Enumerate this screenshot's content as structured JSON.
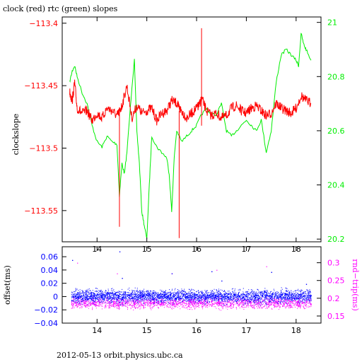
{
  "title": "clock (red) rtc (green) slopes",
  "footer": "2012-05-13  orbit.physics.ubc.ca",
  "colors": {
    "red": "#ff0000",
    "green": "#00ee00",
    "blue": "#0000ff",
    "magenta": "#ff00ff",
    "axis": "#000000"
  },
  "chart_data": [
    {
      "type": "line",
      "title": "clock (red) rtc (green) slopes",
      "xlabel": "",
      "ylabel": "clockslope",
      "ylabel_right": "",
      "xlim": [
        13.3,
        18.5
      ],
      "x_ticks": [
        14,
        15,
        16,
        17,
        18
      ],
      "x_tick_labels": [
        "14",
        "15",
        "16",
        "17",
        "18"
      ],
      "ylim": [
        -113.575,
        -113.395
      ],
      "y_ticks": [
        -113.4,
        -113.45,
        -113.5,
        -113.55
      ],
      "y_tick_labels": [
        "−113.4",
        "−113.45",
        "−113.5",
        "−113.55"
      ],
      "ylim_right": [
        20.19,
        21.02
      ],
      "y2_ticks": [
        20.2,
        20.4,
        20.6,
        20.8,
        21
      ],
      "y2_tick_labels": [
        "20.2",
        "20.4",
        "20.6",
        "20.8",
        "21"
      ],
      "grid": false,
      "series": [
        {
          "name": "clock",
          "color": "red",
          "axis": "left",
          "x": [
            13.45,
            13.5,
            13.55,
            13.6,
            13.7,
            13.8,
            13.9,
            14.0,
            14.1,
            14.2,
            14.3,
            14.4,
            14.45,
            14.5,
            14.6,
            14.7,
            14.8,
            14.9,
            15.0,
            15.1,
            15.2,
            15.3,
            15.4,
            15.5,
            15.6,
            15.65,
            15.7,
            15.8,
            15.9,
            16.0,
            16.05,
            16.1,
            16.2,
            16.3,
            16.4,
            16.5,
            16.6,
            16.7,
            16.8,
            16.9,
            17.0,
            17.1,
            17.2,
            17.3,
            17.4,
            17.5,
            17.6,
            17.7,
            17.8,
            17.9,
            18.0,
            18.1,
            18.2,
            18.3
          ],
          "y": [
            -113.455,
            -113.462,
            -113.448,
            -113.468,
            -113.472,
            -113.47,
            -113.478,
            -113.472,
            -113.476,
            -113.468,
            -113.47,
            -113.474,
            -113.471,
            -113.466,
            -113.45,
            -113.476,
            -113.466,
            -113.472,
            -113.47,
            -113.468,
            -113.478,
            -113.472,
            -113.47,
            -113.462,
            -113.464,
            -113.468,
            -113.47,
            -113.476,
            -113.472,
            -113.468,
            -113.466,
            -113.46,
            -113.47,
            -113.474,
            -113.472,
            -113.476,
            -113.474,
            -113.468,
            -113.466,
            -113.47,
            -113.472,
            -113.468,
            -113.466,
            -113.47,
            -113.474,
            -113.472,
            -113.464,
            -113.468,
            -113.47,
            -113.472,
            -113.468,
            -113.458,
            -113.462,
            -113.464
          ]
        },
        {
          "name": "rtc",
          "color": "green",
          "axis": "right",
          "x": [
            13.45,
            13.5,
            13.55,
            13.6,
            13.7,
            13.8,
            13.9,
            14.0,
            14.1,
            14.2,
            14.3,
            14.4,
            14.45,
            14.5,
            14.55,
            14.6,
            14.7,
            14.75,
            14.8,
            14.85,
            14.9,
            14.95,
            15.0,
            15.05,
            15.1,
            15.2,
            15.3,
            15.4,
            15.45,
            15.5,
            15.55,
            15.6,
            15.7,
            15.8,
            15.9,
            16.0,
            16.1,
            16.2,
            16.3,
            16.4,
            16.5,
            16.6,
            16.7,
            16.8,
            16.9,
            17.0,
            17.1,
            17.2,
            17.3,
            17.4,
            17.5,
            17.6,
            17.7,
            17.8,
            17.9,
            18.0,
            18.05,
            18.1,
            18.15,
            18.2,
            18.3
          ],
          "y": [
            20.78,
            20.82,
            20.84,
            20.8,
            20.74,
            20.7,
            20.62,
            20.56,
            20.54,
            20.58,
            20.56,
            20.55,
            20.36,
            20.48,
            20.44,
            20.52,
            20.76,
            20.86,
            20.6,
            20.48,
            20.3,
            20.25,
            20.2,
            20.4,
            20.58,
            20.54,
            20.52,
            20.5,
            20.44,
            20.3,
            20.5,
            20.6,
            20.56,
            20.58,
            20.6,
            20.62,
            20.66,
            20.68,
            20.66,
            20.66,
            20.7,
            20.6,
            20.58,
            20.6,
            20.62,
            20.64,
            20.62,
            20.6,
            20.64,
            20.52,
            20.6,
            20.78,
            20.88,
            20.9,
            20.88,
            20.86,
            20.84,
            20.96,
            20.92,
            20.9,
            20.86
          ]
        }
      ],
      "spikes": [
        {
          "series": "clock",
          "x": 14.45,
          "y_low": -113.563,
          "y_high": -113.47
        },
        {
          "series": "clock",
          "x": 15.65,
          "y_low": -113.572,
          "y_high": -113.47
        },
        {
          "series": "clock",
          "x": 16.1,
          "y_low": -113.482,
          "y_high": -113.404
        }
      ]
    },
    {
      "type": "scatter",
      "title": "",
      "xlabel": "",
      "ylabel": "offset(ms)",
      "ylabel_right": "rnd−trip(ms)",
      "xlim": [
        13.3,
        18.5
      ],
      "x_ticks": [
        14,
        15,
        16,
        17,
        18
      ],
      "x_tick_labels": [
        "14",
        "15",
        "16",
        "17",
        "18"
      ],
      "ylim": [
        -0.04,
        0.075
      ],
      "y_ticks": [
        0.06,
        0.04,
        0.02,
        0,
        -0.02,
        -0.04
      ],
      "y_tick_labels": [
        "0.06",
        "0.04",
        "0.02",
        "0",
        "−0.02",
        "−0.04"
      ],
      "ylim_right": [
        0.13,
        0.345
      ],
      "y2_ticks": [
        0.3,
        0.25,
        0.2,
        0.15
      ],
      "y2_tick_labels": [
        "0.3",
        "0.25",
        "0.2",
        "0.15"
      ],
      "grid": false,
      "x_range": [
        13.48,
        18.3
      ],
      "series": [
        {
          "name": "offset",
          "color": "blue",
          "axis": "left",
          "band_center": 0.0,
          "band_halfwidth": 0.009,
          "outliers_x": [
            13.5,
            14.45,
            14.5,
            15.5,
            16.3,
            16.5,
            17.5,
            18.2
          ],
          "outliers_y": [
            0.055,
            0.068,
            0.028,
            0.035,
            0.038,
            0.024,
            0.037,
            0.019
          ]
        },
        {
          "name": "rnd-trip",
          "color": "magenta",
          "axis": "right",
          "band_center": 0.185,
          "band_halfwidth": 0.013,
          "outliers_x": [
            13.6,
            14.4,
            15.5,
            16.4,
            17.4
          ],
          "outliers_y": [
            0.3,
            0.27,
            0.27,
            0.28,
            0.29
          ]
        }
      ]
    }
  ]
}
